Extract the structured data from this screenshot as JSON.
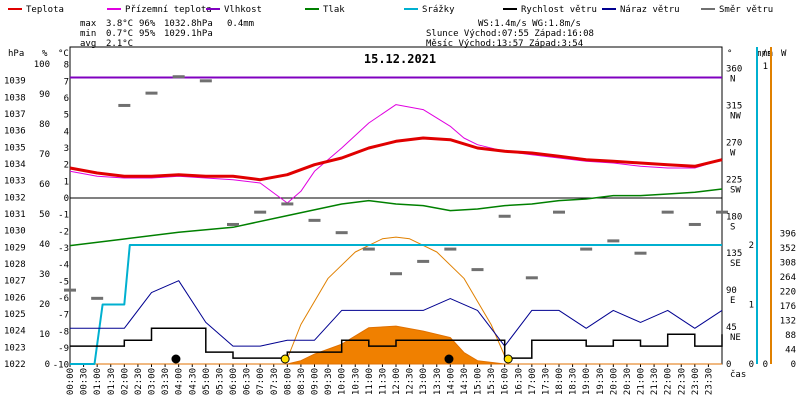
{
  "chart_data": {
    "type": "line",
    "title": "15.12.2021",
    "legend": [
      {
        "name": "Teplota",
        "color": "#e00000"
      },
      {
        "name": "Přízemní teplota",
        "color": "#e000e0"
      },
      {
        "name": "Vlhkost",
        "color": "#8000c0"
      },
      {
        "name": "Tlak",
        "color": "#008000"
      },
      {
        "name": "Srážky",
        "color": "#00b0d0"
      },
      {
        "name": "Rychlost větru",
        "color": "#000000"
      },
      {
        "name": "Náraz větru",
        "color": "#000090"
      },
      {
        "name": "Směr větru",
        "color": "#707070"
      }
    ],
    "stats": {
      "labels": [
        "max",
        "min",
        "avg"
      ],
      "temperature": [
        "3.8°C",
        "0.7°C",
        "2.1°C"
      ],
      "humidity": [
        "96%",
        "95%",
        ""
      ],
      "pressure": [
        "1032.8hPa",
        "1029.1hPa",
        ""
      ],
      "rain": "0.4mm"
    },
    "info": {
      "line1": "WS:1.4m/s      WG:1.8m/s",
      "line2": "Slunce Východ:07:55  Západ:16:08",
      "line3": "Měsíc  Východ:13:57  Západ:3:54"
    },
    "axes": {
      "hpa_title": "hPa",
      "hpa_ticks": [
        "1039",
        "1038",
        "1037",
        "1036",
        "1035",
        "1034",
        "1033",
        "1032",
        "1031",
        "1030",
        "1029",
        "1028",
        "1027",
        "1026",
        "1025",
        "1024",
        "1023",
        "1022"
      ],
      "pct_title": "%",
      "pct_ticks": [
        "100",
        "90",
        "80",
        "70",
        "60",
        "50",
        "40",
        "30",
        "20",
        "10",
        "0"
      ],
      "c_title": "°C",
      "c_ticks": [
        "8",
        "7",
        "6",
        "5",
        "4",
        "3",
        "2",
        "1",
        "0",
        "-1",
        "-2",
        "-3",
        "-4",
        "-5",
        "-6",
        "-7",
        "-8",
        "-9",
        "-10"
      ],
      "deg_title": "°",
      "dir_ticks": [
        {
          "deg": "360",
          "dir": "N"
        },
        {
          "deg": "315",
          "dir": "NW"
        },
        {
          "deg": "270",
          "dir": "W"
        },
        {
          "deg": "225",
          "dir": "SW"
        },
        {
          "deg": "180",
          "dir": "S"
        },
        {
          "deg": "135",
          "dir": "SE"
        },
        {
          "deg": "90",
          "dir": "E"
        },
        {
          "deg": "45",
          "dir": "NE"
        },
        {
          "deg": "0",
          "dir": ""
        }
      ],
      "ms_title": "m/s",
      "ms_ticks": [
        "2",
        "1",
        "0"
      ],
      "mm_title": "mm",
      "mm_ticks": [
        "1",
        "0"
      ],
      "w_title": "W",
      "w_ticks": [
        "396",
        "352",
        "308",
        "264",
        "220",
        "176",
        "132",
        "88",
        "44",
        "0"
      ],
      "xlabel": "čas",
      "time_labels": [
        "00:00",
        "00:30",
        "01:00",
        "01:30",
        "02:00",
        "02:30",
        "03:00",
        "03:30",
        "04:00",
        "04:30",
        "05:00",
        "05:30",
        "06:00",
        "06:30",
        "07:00",
        "07:30",
        "08:00",
        "08:30",
        "09:00",
        "09:30",
        "10:00",
        "10:30",
        "11:00",
        "11:30",
        "12:00",
        "12:30",
        "13:00",
        "13:30",
        "14:00",
        "14:30",
        "15:00",
        "15:30",
        "16:00",
        "16:30",
        "17:00",
        "17:30",
        "18:00",
        "18:30",
        "19:00",
        "19:30",
        "20:00",
        "20:30",
        "21:00",
        "21:30",
        "22:00",
        "22:30",
        "23:00",
        "23:30"
      ]
    },
    "temperature": {
      "x_hours": [
        0,
        1,
        2,
        3,
        4,
        5,
        6,
        7,
        8,
        9,
        10,
        11,
        12,
        13,
        14,
        15,
        16,
        17,
        18,
        19,
        20,
        21,
        22,
        23,
        24
      ],
      "y_c": [
        1.8,
        1.5,
        1.3,
        1.3,
        1.4,
        1.3,
        1.3,
        1.1,
        1.4,
        2.0,
        2.4,
        3.0,
        3.4,
        3.6,
        3.5,
        3.0,
        2.8,
        2.7,
        2.5,
        2.3,
        2.2,
        2.1,
        2.0,
        1.9,
        2.3
      ]
    },
    "ground_temperature": {
      "x_hours": [
        0,
        1,
        2,
        3,
        4,
        5,
        6,
        7,
        8,
        8.5,
        9,
        10,
        11,
        12,
        13,
        14,
        14.5,
        15,
        16,
        17,
        18,
        19,
        20,
        21,
        22,
        23,
        24
      ],
      "y_c": [
        1.6,
        1.3,
        1.2,
        1.2,
        1.3,
        1.2,
        1.1,
        0.9,
        -0.3,
        0.4,
        1.6,
        3.0,
        4.5,
        5.6,
        5.3,
        4.3,
        3.6,
        3.2,
        2.8,
        2.6,
        2.4,
        2.2,
        2.1,
        1.9,
        1.8,
        1.8,
        2.3
      ]
    },
    "pressure": {
      "x_hours": [
        0,
        2,
        4,
        6,
        8,
        10,
        11,
        12,
        13,
        14,
        15,
        16,
        17,
        18,
        19,
        20,
        21,
        22,
        23,
        24
      ],
      "y_hpa": [
        1029.1,
        1029.5,
        1029.9,
        1030.2,
        1030.9,
        1031.6,
        1031.8,
        1031.6,
        1031.5,
        1031.2,
        1031.3,
        1031.5,
        1031.6,
        1031.8,
        1031.9,
        1032.1,
        1032.1,
        1032.2,
        1032.3,
        1032.5
      ]
    },
    "humidity": {
      "x_hours": [
        0,
        24
      ],
      "y_pct": [
        95.5,
        95.5
      ]
    },
    "rain": {
      "x_hours": [
        0,
        0.9,
        1.2,
        2.0,
        2.2,
        24
      ],
      "y_mm": [
        0,
        0,
        0.2,
        0.2,
        0.4,
        0.4
      ]
    },
    "wind_speed": {
      "x_hours": [
        0,
        1,
        2,
        3,
        4,
        5,
        6,
        7,
        8,
        9,
        10,
        11,
        12,
        13,
        14,
        15,
        16,
        17,
        18,
        19,
        20,
        21,
        22,
        23,
        24
      ],
      "y_ms": [
        0.3,
        0.3,
        0.4,
        0.6,
        0.6,
        0.2,
        0.1,
        0.1,
        0.2,
        0.2,
        0.4,
        0.3,
        0.4,
        0.4,
        0.4,
        0.4,
        0.1,
        0.4,
        0.4,
        0.3,
        0.4,
        0.3,
        0.5,
        0.3,
        0.5
      ]
    },
    "wind_gust": {
      "x_hours": [
        0,
        1,
        2,
        3,
        4,
        5,
        6,
        7,
        8,
        9,
        10,
        11,
        12,
        13,
        14,
        15,
        16,
        17,
        18,
        19,
        20,
        21,
        22,
        23,
        24
      ],
      "y_ms": [
        0.6,
        0.6,
        0.6,
        1.2,
        1.4,
        0.7,
        0.3,
        0.3,
        0.4,
        0.4,
        0.9,
        0.9,
        0.9,
        0.9,
        1.1,
        0.9,
        0.3,
        0.9,
        0.9,
        0.6,
        0.9,
        0.7,
        0.9,
        0.6,
        0.9
      ]
    },
    "wind_direction": {
      "x_hours": [
        0,
        1,
        2,
        3,
        4,
        5,
        6,
        7,
        8,
        9,
        10,
        11,
        12,
        13,
        14,
        15,
        16,
        17,
        18,
        19,
        20,
        21,
        22,
        23,
        24
      ],
      "y_deg": [
        90,
        80,
        315,
        330,
        350,
        345,
        170,
        185,
        195,
        175,
        160,
        140,
        110,
        125,
        140,
        115,
        180,
        105,
        185,
        140,
        150,
        135,
        185,
        170,
        185
      ]
    },
    "solar": {
      "x_hours": [
        0,
        8,
        8.5,
        9,
        10,
        11,
        12,
        13,
        13.5,
        14,
        14.5,
        15,
        16,
        24
      ],
      "y_w": [
        0,
        0,
        10,
        30,
        60,
        110,
        115,
        100,
        90,
        80,
        35,
        10,
        0,
        0
      ]
    },
    "sun_curve": {
      "x_hours": [
        7.92,
        8.5,
        9.5,
        10.5,
        11.5,
        12.0,
        12.5,
        13.5,
        14.5,
        15.5,
        16.13
      ],
      "y_w": [
        0,
        120,
        260,
        340,
        380,
        385,
        380,
        340,
        260,
        120,
        0
      ]
    }
  }
}
